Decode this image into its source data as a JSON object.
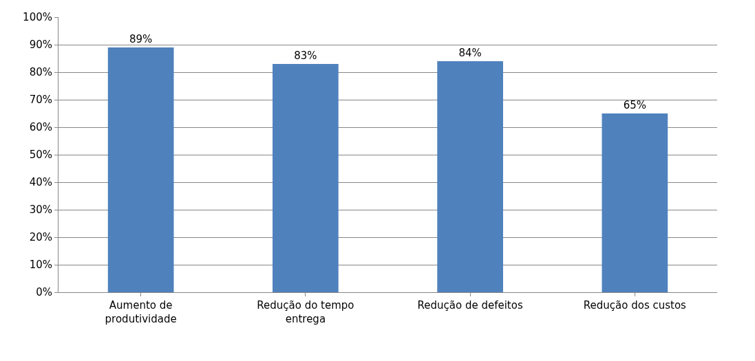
{
  "chart_data": {
    "type": "bar",
    "categories": [
      "Aumento de produtividade",
      "Redução do tempo entrega",
      "Redução de defeitos",
      "Redução dos custos"
    ],
    "values": [
      89,
      83,
      84,
      65
    ],
    "value_labels": [
      "89%",
      "83%",
      "84%",
      "65%"
    ],
    "color": "#4f81bd",
    "ylim": [
      0,
      100
    ],
    "yticks": [
      {
        "value": 0,
        "label": "0%"
      },
      {
        "value": 10,
        "label": "10%"
      },
      {
        "value": 20,
        "label": "20%"
      },
      {
        "value": 30,
        "label": "30%"
      },
      {
        "value": 40,
        "label": "40%"
      },
      {
        "value": 50,
        "label": "50%"
      },
      {
        "value": 60,
        "label": "60%"
      },
      {
        "value": 70,
        "label": "70%"
      },
      {
        "value": 80,
        "label": "80%"
      },
      {
        "value": 90,
        "label": "90%"
      },
      {
        "value": 100,
        "label": "100%"
      }
    ],
    "grid": "y",
    "legend": false
  }
}
